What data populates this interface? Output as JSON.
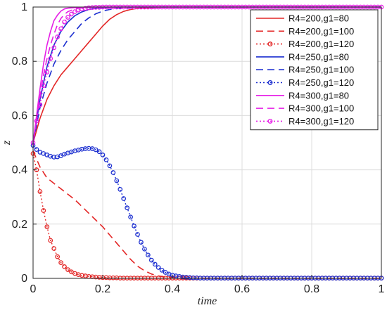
{
  "chart_data": {
    "type": "line",
    "xlabel": "time",
    "ylabel": "z",
    "xlim": [
      0,
      1
    ],
    "ylim": [
      0,
      1
    ],
    "x_ticks": [
      "0",
      "0.2",
      "0.4",
      "0.6",
      "0.8",
      "1"
    ],
    "y_ticks": [
      "0",
      "0.2",
      "0.4",
      "0.6",
      "0.8",
      "1"
    ],
    "grid": true,
    "legend_position": "top-right",
    "series": [
      {
        "name": "R4=200,g1=80",
        "color": "#e32626",
        "line_style": "solid",
        "marker": "none",
        "x": [
          0,
          0.02,
          0.04,
          0.06,
          0.08,
          0.1,
          0.12,
          0.14,
          0.16,
          0.18,
          0.2,
          0.22,
          0.24,
          0.26,
          0.28,
          0.3,
          0.32,
          0.35,
          0.4,
          0.5,
          0.6,
          0.7,
          0.8,
          0.9,
          1.0
        ],
        "y": [
          0.5,
          0.59,
          0.66,
          0.71,
          0.75,
          0.78,
          0.81,
          0.84,
          0.87,
          0.9,
          0.93,
          0.955,
          0.972,
          0.984,
          0.991,
          0.995,
          0.997,
          0.999,
          1.0,
          1.0,
          1.0,
          1.0,
          1.0,
          1.0,
          1.0
        ]
      },
      {
        "name": "R4=200,g1=100",
        "color": "#e32626",
        "line_style": "dashed",
        "marker": "none",
        "x": [
          0,
          0.01,
          0.02,
          0.04,
          0.06,
          0.08,
          0.1,
          0.12,
          0.14,
          0.16,
          0.18,
          0.2,
          0.22,
          0.24,
          0.26,
          0.28,
          0.3,
          0.32,
          0.34,
          0.36,
          0.38,
          0.4,
          0.45,
          0.5,
          0.6,
          0.8,
          1.0
        ],
        "y": [
          0.47,
          0.44,
          0.41,
          0.37,
          0.35,
          0.33,
          0.31,
          0.29,
          0.265,
          0.24,
          0.215,
          0.19,
          0.16,
          0.13,
          0.1,
          0.07,
          0.045,
          0.028,
          0.016,
          0.009,
          0.005,
          0.003,
          0.001,
          0,
          0,
          0,
          0
        ]
      },
      {
        "name": "R4=200,g1=120",
        "color": "#e32626",
        "line_style": "dotted",
        "marker": "circle",
        "x": [
          0,
          0.01,
          0.02,
          0.03,
          0.04,
          0.05,
          0.06,
          0.07,
          0.08,
          0.09,
          0.1,
          0.11,
          0.12,
          0.13,
          0.14,
          0.15,
          0.16,
          0.17,
          0.18,
          0.19,
          0.2,
          0.21,
          0.22,
          0.23,
          0.24,
          0.25,
          0.26,
          0.27,
          0.28,
          0.29,
          0.3,
          0.31,
          0.32,
          0.33,
          0.34,
          0.35,
          0.36,
          0.37,
          0.38,
          0.39,
          0.4,
          0.41,
          0.42,
          0.43,
          0.44,
          0.45,
          0.46,
          0.47,
          0.48,
          0.49,
          0.5,
          0.51,
          0.52,
          0.53,
          0.54,
          0.55,
          0.56,
          0.57,
          0.58,
          0.59,
          0.6,
          0.61,
          0.62,
          0.63,
          0.64,
          0.65,
          0.66,
          0.67,
          0.68,
          0.69,
          0.7,
          0.71,
          0.72,
          0.73,
          0.74,
          0.75,
          0.76,
          0.77,
          0.78,
          0.79,
          0.8,
          0.81,
          0.82,
          0.83,
          0.84,
          0.85,
          0.86,
          0.87,
          0.88,
          0.89,
          0.9,
          0.91,
          0.92,
          0.93,
          0.94,
          0.95,
          0.96,
          0.97,
          0.98,
          0.99,
          1.0
        ],
        "y": [
          0.46,
          0.4,
          0.32,
          0.25,
          0.19,
          0.14,
          0.11,
          0.08,
          0.058,
          0.043,
          0.032,
          0.024,
          0.018,
          0.014,
          0.011,
          0.009,
          0.007,
          0.006,
          0.005,
          0.004,
          0.003,
          0.003,
          0.002,
          0.002,
          0.002,
          0.001,
          0.001,
          0.001,
          0.001,
          0.001,
          0.001,
          0.001,
          0.001,
          0.001,
          0.001,
          0.001,
          0.001,
          0.001,
          0.001,
          0.001,
          0.001,
          0.001,
          0.001,
          0.001,
          0.001,
          0.001,
          0.001,
          0.001,
          0.001,
          0.001,
          0.001,
          0.001,
          0.001,
          0.001,
          0.001,
          0.001,
          0.001,
          0.001,
          0.001,
          0.001,
          0.001,
          0.001,
          0.001,
          0.001,
          0.001,
          0.001,
          0.001,
          0.001,
          0.001,
          0.001,
          0.001,
          0.001,
          0.001,
          0.001,
          0.001,
          0.001,
          0.001,
          0.001,
          0.001,
          0.001,
          0.001,
          0.001,
          0.001,
          0.001,
          0.001,
          0.001,
          0.001,
          0.001,
          0.001,
          0.001,
          0.001,
          0.001,
          0.001,
          0.001,
          0.001,
          0.001,
          0.001,
          0.001,
          0.001,
          0.001,
          0.001
        ]
      },
      {
        "name": "R4=250,g1=80",
        "color": "#1c2fd0",
        "line_style": "solid",
        "marker": "none",
        "x": [
          0,
          0.02,
          0.04,
          0.06,
          0.08,
          0.1,
          0.12,
          0.14,
          0.16,
          0.18,
          0.2,
          0.22,
          0.25,
          0.3,
          0.4,
          0.5,
          0.6,
          0.8,
          1.0
        ],
        "y": [
          0.5,
          0.66,
          0.78,
          0.86,
          0.91,
          0.945,
          0.968,
          0.982,
          0.991,
          0.996,
          0.998,
          0.999,
          1.0,
          1.0,
          1.0,
          1.0,
          1.0,
          1.0,
          1.0
        ]
      },
      {
        "name": "R4=250,g1=100",
        "color": "#1c2fd0",
        "line_style": "dashed",
        "marker": "none",
        "x": [
          0,
          0.02,
          0.04,
          0.06,
          0.08,
          0.1,
          0.12,
          0.14,
          0.16,
          0.18,
          0.2,
          0.22,
          0.24,
          0.26,
          0.28,
          0.3,
          0.35,
          0.4,
          0.5,
          0.6,
          0.8,
          1.0
        ],
        "y": [
          0.5,
          0.63,
          0.72,
          0.79,
          0.84,
          0.88,
          0.91,
          0.94,
          0.96,
          0.975,
          0.985,
          0.991,
          0.995,
          0.997,
          0.999,
          1.0,
          1.0,
          1.0,
          1.0,
          1.0,
          1.0,
          1.0
        ]
      },
      {
        "name": "R4=250,g1=120",
        "color": "#1c2fd0",
        "line_style": "dotted",
        "marker": "circle",
        "x": [
          0,
          0.01,
          0.02,
          0.03,
          0.04,
          0.05,
          0.06,
          0.07,
          0.08,
          0.09,
          0.1,
          0.11,
          0.12,
          0.13,
          0.14,
          0.15,
          0.16,
          0.17,
          0.18,
          0.19,
          0.2,
          0.21,
          0.22,
          0.23,
          0.24,
          0.25,
          0.26,
          0.27,
          0.28,
          0.29,
          0.3,
          0.31,
          0.32,
          0.33,
          0.34,
          0.35,
          0.36,
          0.37,
          0.38,
          0.39,
          0.4,
          0.41,
          0.42,
          0.43,
          0.44,
          0.45,
          0.46,
          0.47,
          0.48,
          0.49,
          0.5,
          0.51,
          0.52,
          0.53,
          0.54,
          0.55,
          0.56,
          0.57,
          0.58,
          0.59,
          0.6,
          0.61,
          0.62,
          0.63,
          0.64,
          0.65,
          0.66,
          0.67,
          0.68,
          0.69,
          0.7,
          0.71,
          0.72,
          0.73,
          0.74,
          0.75,
          0.76,
          0.77,
          0.78,
          0.79,
          0.8,
          0.81,
          0.82,
          0.83,
          0.84,
          0.85,
          0.86,
          0.87,
          0.88,
          0.89,
          0.9,
          0.91,
          0.92,
          0.93,
          0.94,
          0.95,
          0.96,
          0.97,
          0.98,
          0.99,
          1.0
        ],
        "y": [
          0.49,
          0.475,
          0.465,
          0.46,
          0.455,
          0.45,
          0.447,
          0.448,
          0.452,
          0.458,
          0.462,
          0.466,
          0.47,
          0.473,
          0.476,
          0.478,
          0.479,
          0.478,
          0.474,
          0.467,
          0.455,
          0.437,
          0.415,
          0.39,
          0.36,
          0.328,
          0.294,
          0.26,
          0.226,
          0.193,
          0.162,
          0.133,
          0.108,
          0.086,
          0.067,
          0.052,
          0.04,
          0.03,
          0.022,
          0.016,
          0.012,
          0.009,
          0.007,
          0.005,
          0.004,
          0.003,
          0.002,
          0.002,
          0.001,
          0.001,
          0.001,
          0.001,
          0.001,
          0.001,
          0.001,
          0.001,
          0.001,
          0.001,
          0.001,
          0.001,
          0.001,
          0.001,
          0.001,
          0.001,
          0.001,
          0.001,
          0.001,
          0.001,
          0.001,
          0.001,
          0.001,
          0.001,
          0.001,
          0.001,
          0.001,
          0.001,
          0.001,
          0.001,
          0.001,
          0.001,
          0.001,
          0.001,
          0.001,
          0.001,
          0.001,
          0.001,
          0.001,
          0.001,
          0.001,
          0.001,
          0.001,
          0.001,
          0.001,
          0.001,
          0.001,
          0.001,
          0.001,
          0.001,
          0.001,
          0.001,
          0.001
        ]
      },
      {
        "name": "R4=300,g1=80",
        "color": "#e61ee6",
        "line_style": "solid",
        "marker": "none",
        "x": [
          0,
          0.01,
          0.02,
          0.03,
          0.04,
          0.05,
          0.06,
          0.07,
          0.08,
          0.09,
          0.1,
          0.12,
          0.14,
          0.16,
          0.2,
          0.3,
          0.5,
          1.0
        ],
        "y": [
          0.5,
          0.6,
          0.7,
          0.79,
          0.86,
          0.91,
          0.95,
          0.97,
          0.985,
          0.993,
          0.996,
          0.998,
          0.999,
          1.0,
          1.0,
          1.0,
          1.0,
          1.0
        ]
      },
      {
        "name": "R4=300,g1=100",
        "color": "#e61ee6",
        "line_style": "dashed",
        "marker": "none",
        "x": [
          0,
          0.01,
          0.02,
          0.03,
          0.04,
          0.05,
          0.06,
          0.07,
          0.08,
          0.09,
          0.1,
          0.12,
          0.14,
          0.16,
          0.2,
          0.3,
          0.5,
          1.0
        ],
        "y": [
          0.5,
          0.59,
          0.67,
          0.75,
          0.81,
          0.86,
          0.9,
          0.935,
          0.958,
          0.973,
          0.983,
          0.993,
          0.997,
          0.999,
          1.0,
          1.0,
          1.0,
          1.0
        ]
      },
      {
        "name": "R4=300,g1=120",
        "color": "#e61ee6",
        "line_style": "dotted",
        "marker": "circle",
        "x": [
          0,
          0.01,
          0.02,
          0.03,
          0.04,
          0.05,
          0.06,
          0.07,
          0.08,
          0.09,
          0.1,
          0.11,
          0.12,
          0.13,
          0.14,
          0.15,
          0.16,
          0.17,
          0.18,
          0.19,
          0.2,
          0.21,
          0.22,
          0.23,
          0.24,
          0.25,
          0.26,
          0.27,
          0.28,
          0.29,
          0.3,
          0.31,
          0.32,
          0.33,
          0.34,
          0.35,
          0.36,
          0.37,
          0.38,
          0.39,
          0.4,
          0.41,
          0.42,
          0.43,
          0.44,
          0.45,
          0.46,
          0.47,
          0.48,
          0.49,
          0.5,
          0.51,
          0.52,
          0.53,
          0.54,
          0.55,
          0.56,
          0.57,
          0.58,
          0.59,
          0.6,
          0.61,
          0.62,
          0.63,
          0.64,
          0.65,
          0.66,
          0.67,
          0.68,
          0.69,
          0.7,
          0.71,
          0.72,
          0.73,
          0.74,
          0.75,
          0.76,
          0.77,
          0.78,
          0.79,
          0.8,
          0.81,
          0.82,
          0.83,
          0.84,
          0.85,
          0.86,
          0.87,
          0.88,
          0.89,
          0.9,
          0.91,
          0.92,
          0.93,
          0.94,
          0.95,
          0.96,
          0.97,
          0.98,
          0.99,
          1.0
        ],
        "y": [
          0.5,
          0.58,
          0.64,
          0.71,
          0.76,
          0.81,
          0.85,
          0.89,
          0.92,
          0.945,
          0.962,
          0.974,
          0.983,
          0.989,
          0.993,
          0.995,
          0.997,
          0.998,
          0.999,
          0.999,
          1.0,
          1.0,
          1.0,
          1.0,
          1.0,
          1.0,
          1.0,
          1.0,
          1.0,
          1.0,
          1.0,
          1.0,
          1.0,
          1.0,
          1.0,
          1.0,
          1.0,
          1.0,
          1.0,
          1.0,
          1.0,
          1.0,
          1.0,
          1.0,
          1.0,
          1.0,
          1.0,
          1.0,
          1.0,
          1.0,
          1.0,
          1.0,
          1.0,
          1.0,
          1.0,
          1.0,
          1.0,
          1.0,
          1.0,
          1.0,
          1.0,
          1.0,
          1.0,
          1.0,
          1.0,
          1.0,
          1.0,
          1.0,
          1.0,
          1.0,
          1.0,
          1.0,
          1.0,
          1.0,
          1.0,
          1.0,
          1.0,
          1.0,
          1.0,
          1.0,
          1.0,
          1.0,
          1.0,
          1.0,
          1.0,
          1.0,
          1.0,
          1.0,
          1.0,
          1.0,
          1.0,
          1.0,
          1.0,
          1.0,
          1.0,
          1.0,
          1.0,
          1.0,
          1.0,
          1.0,
          1.0
        ]
      }
    ]
  }
}
